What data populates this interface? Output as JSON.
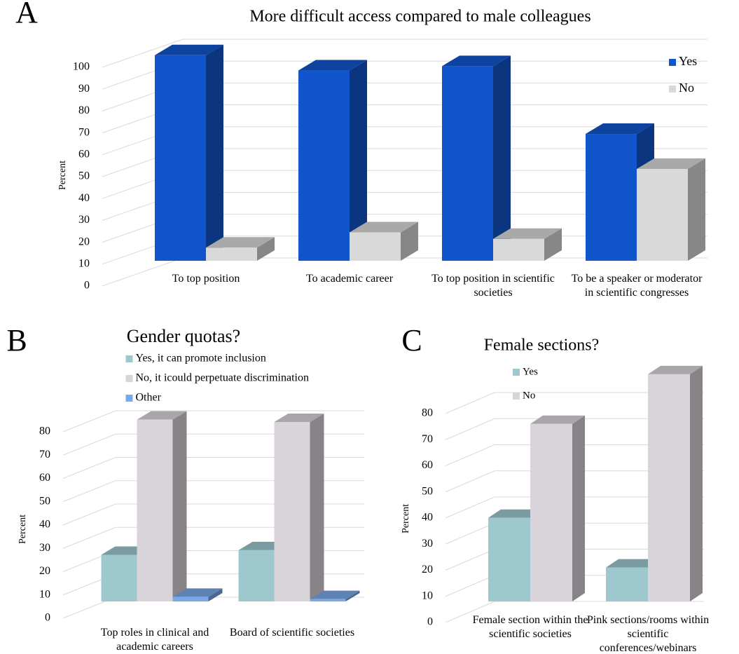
{
  "chart_data": [
    {
      "type": "bar3d",
      "panel": "A",
      "title": "More difficult access compared to male colleagues",
      "y_label": "Percent",
      "categories": [
        "To top position",
        "To academic career",
        "To top position in scientific societies",
        "To be a speaker or moderator in scientific congresses"
      ],
      "series": [
        {
          "name": "Yes",
          "color": "#1155cc",
          "values": [
            94,
            87,
            89,
            58
          ]
        },
        {
          "name": "No",
          "color": "#d9d9d9",
          "values": [
            6,
            13,
            10,
            42
          ]
        }
      ],
      "ylim": [
        0,
        100
      ],
      "yticks": [
        0,
        10,
        20,
        30,
        40,
        50,
        60,
        70,
        80,
        90,
        100
      ],
      "grid": true,
      "legend": "upper right"
    },
    {
      "type": "bar3d",
      "panel": "B",
      "title": "Gender quotas?",
      "y_label": "Percent",
      "categories": [
        "Top roles in clinical and academic careers",
        "Board of scientific societies"
      ],
      "series": [
        {
          "name": "Yes, it can promote inclusion",
          "color": "#9cc8ce",
          "values": [
            20,
            22
          ]
        },
        {
          "name": "No, it icould perpetuate discrimination",
          "color": "#d9d3da",
          "values": [
            78,
            77
          ]
        },
        {
          "name": "Other",
          "color": "#7aa7e8",
          "values": [
            2,
            1
          ]
        }
      ],
      "ylim": [
        0,
        80
      ],
      "yticks": [
        0,
        10,
        20,
        30,
        40,
        50,
        60,
        70,
        80
      ],
      "grid": true,
      "legend": "upper left"
    },
    {
      "type": "bar3d",
      "panel": "C",
      "title": "Female sections?",
      "y_label": "Percent",
      "categories": [
        "Female section within the scientific societies",
        "Pink sections/rooms within scientific conferences/webinars"
      ],
      "series": [
        {
          "name": "Yes",
          "color": "#9cc8ce",
          "values": [
            32,
            13
          ]
        },
        {
          "name": "No",
          "color": "#d9d3da",
          "values": [
            68,
            87
          ]
        }
      ],
      "ylim": [
        0,
        80
      ],
      "yticks": [
        0,
        10,
        20,
        30,
        40,
        50,
        60,
        70,
        80
      ],
      "grid": true,
      "legend": "upper left"
    }
  ]
}
